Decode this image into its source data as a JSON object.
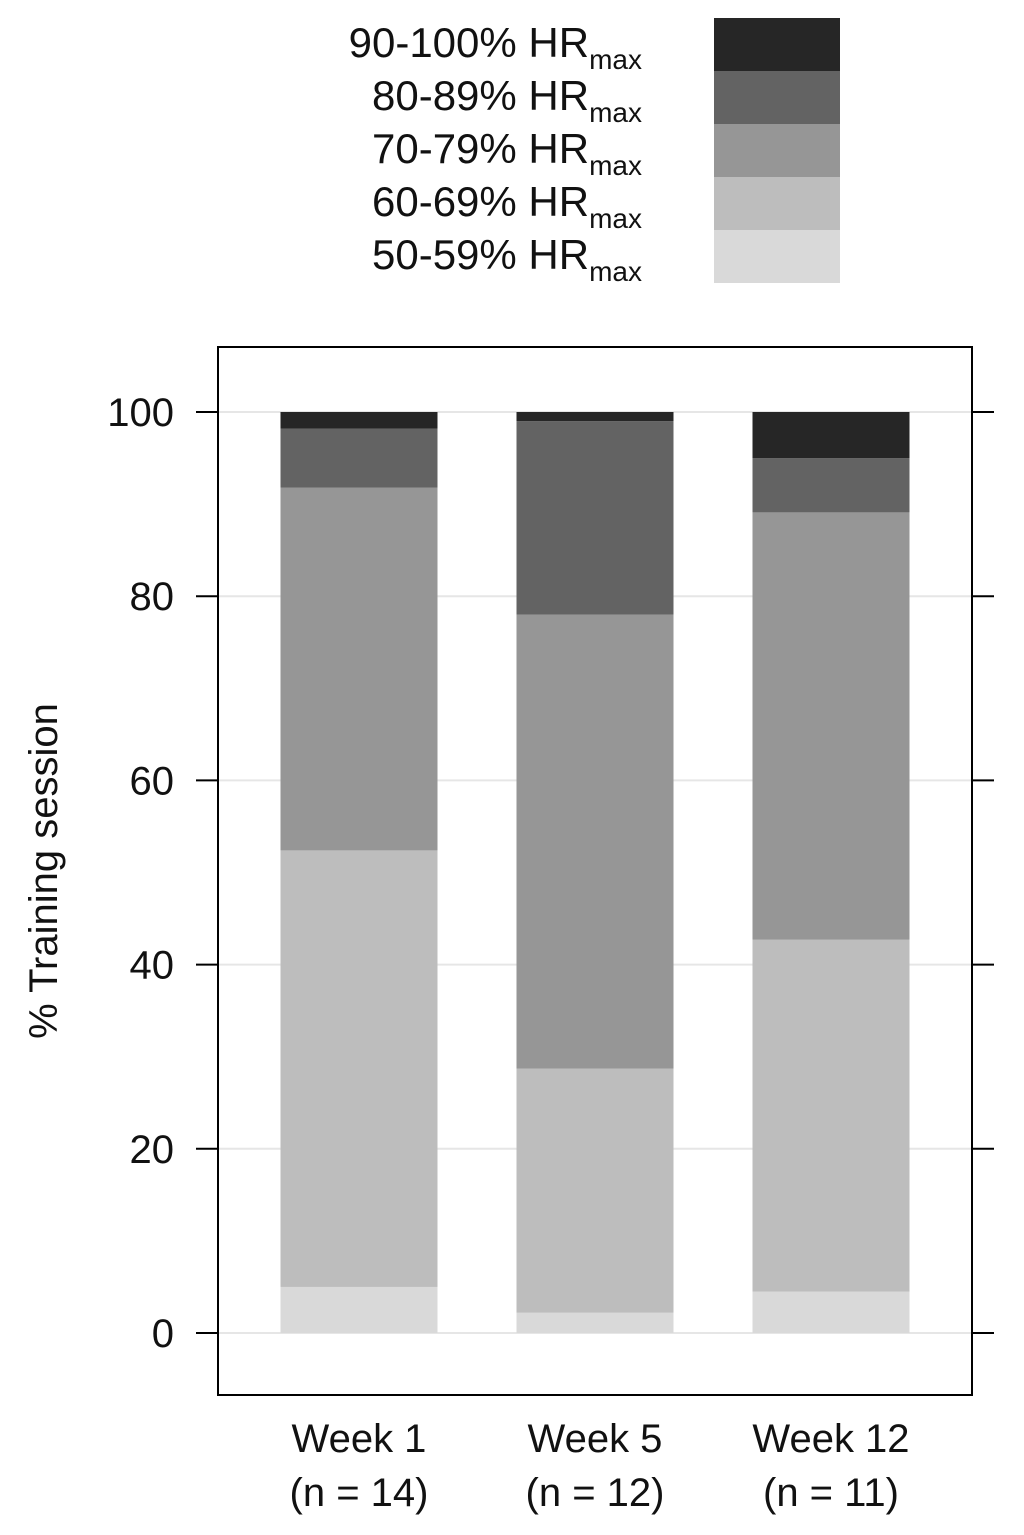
{
  "legend": {
    "entries": [
      {
        "range": "90-100% HR",
        "sub": "max",
        "color": "#262626"
      },
      {
        "range": "80-89% HR",
        "sub": "max",
        "color": "#636363"
      },
      {
        "range": "70-79% HR",
        "sub": "max",
        "color": "#969696"
      },
      {
        "range": "60-69% HR",
        "sub": "max",
        "color": "#bdbdbd"
      },
      {
        "range": "50-59% HR",
        "sub": "max",
        "color": "#d9d9d9"
      }
    ]
  },
  "chart_data": {
    "type": "bar",
    "stacked": true,
    "ylabel": "% Training session",
    "ylim": [
      -7,
      107
    ],
    "yticks": [
      0,
      20,
      40,
      60,
      80,
      100
    ],
    "grid": true,
    "legend_position": "top",
    "categories": [
      {
        "line1": "Week 1",
        "line2": "(n = 14)"
      },
      {
        "line1": "Week 5",
        "line2": "(n = 12)"
      },
      {
        "line1": "Week 12",
        "line2": "(n = 11)"
      }
    ],
    "series": [
      {
        "name": "50-59% HRmax",
        "color": "#d9d9d9",
        "values": [
          5.0,
          2.2,
          4.5
        ]
      },
      {
        "name": "60-69% HRmax",
        "color": "#bdbdbd",
        "values": [
          47.4,
          26.5,
          38.2
        ]
      },
      {
        "name": "70-79% HRmax",
        "color": "#969696",
        "values": [
          39.4,
          49.3,
          46.4
        ]
      },
      {
        "name": "80-89% HRmax",
        "color": "#636363",
        "values": [
          6.4,
          21.0,
          5.9
        ]
      },
      {
        "name": "90-100% HRmax",
        "color": "#262626",
        "values": [
          1.8,
          1.0,
          5.0
        ]
      }
    ]
  }
}
